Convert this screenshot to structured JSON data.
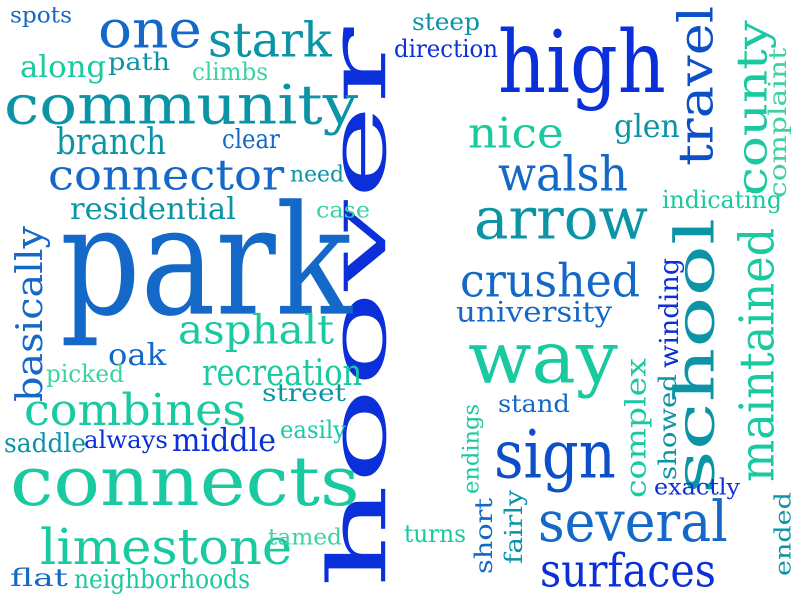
{
  "palette": {
    "royal_blue": "#0b2fd8",
    "medium_blue": "#1468c8",
    "teal": "#0a94a6",
    "aqua_green": "#19c9a0",
    "seafoam": "#3bd3a0"
  },
  "words": [
    {
      "text": "hoover",
      "color": "#0b2fd8",
      "vertical": true
    },
    {
      "text": "park",
      "color": "#1468c8",
      "vertical": false
    },
    {
      "text": "connects",
      "color": "#19c9a0",
      "vertical": false
    },
    {
      "text": "community",
      "color": "#0a94a6",
      "vertical": false
    },
    {
      "text": "high",
      "color": "#0b2fd8",
      "vertical": false
    },
    {
      "text": "school",
      "color": "#0a94a6",
      "vertical": true
    },
    {
      "text": "way",
      "color": "#19c9a0",
      "vertical": false
    },
    {
      "text": "several",
      "color": "#1468c8",
      "vertical": false
    },
    {
      "text": "travel",
      "color": "#0b50c8",
      "vertical": true
    },
    {
      "text": "sign",
      "color": "#0b50c8",
      "vertical": false
    },
    {
      "text": "arrow",
      "color": "#0a94a6",
      "vertical": false
    },
    {
      "text": "one",
      "color": "#1468c8",
      "vertical": false
    },
    {
      "text": "maintained",
      "color": "#19c9a0",
      "vertical": true
    },
    {
      "text": "county",
      "color": "#19c9a0",
      "vertical": true
    },
    {
      "text": "limestone",
      "color": "#19c9a0",
      "vertical": false
    },
    {
      "text": "connector",
      "color": "#1468c8",
      "vertical": false
    },
    {
      "text": "surfaces",
      "color": "#0b2fd8",
      "vertical": false
    },
    {
      "text": "combines",
      "color": "#19c9a0",
      "vertical": false
    },
    {
      "text": "basically",
      "color": "#1468c8",
      "vertical": true
    },
    {
      "text": "stark",
      "color": "#0a94a6",
      "vertical": false
    },
    {
      "text": "walsh",
      "color": "#1468c8",
      "vertical": false
    },
    {
      "text": "nice",
      "color": "#19c9a0",
      "vertical": false
    },
    {
      "text": "crushed",
      "color": "#1468c8",
      "vertical": false
    },
    {
      "text": "asphalt",
      "color": "#19c9a0",
      "vertical": false
    },
    {
      "text": "recreation",
      "color": "#19c9a0",
      "vertical": false
    },
    {
      "text": "residential",
      "color": "#0a94a6",
      "vertical": false
    },
    {
      "text": "branch",
      "color": "#0a94a6",
      "vertical": false
    },
    {
      "text": "middle",
      "color": "#0b2fd8",
      "vertical": false
    },
    {
      "text": "university",
      "color": "#1468c8",
      "vertical": false
    },
    {
      "text": "complex",
      "color": "#19c9a0",
      "vertical": true
    },
    {
      "text": "winding",
      "color": "#0b2fd8",
      "vertical": true
    },
    {
      "text": "glen",
      "color": "#0a94a6",
      "vertical": false
    },
    {
      "text": "direction",
      "color": "#0b2fd8",
      "vertical": false
    },
    {
      "text": "oak",
      "color": "#1468c8",
      "vertical": false
    },
    {
      "text": "along",
      "color": "#19c9a0",
      "vertical": false
    },
    {
      "text": "path",
      "color": "#0a94a6",
      "vertical": false
    },
    {
      "text": "climbs",
      "color": "#3bd3a0",
      "vertical": false
    },
    {
      "text": "steep",
      "color": "#0a94a6",
      "vertical": false
    },
    {
      "text": "spots",
      "color": "#1468c8",
      "vertical": false
    },
    {
      "text": "clear",
      "color": "#1468c8",
      "vertical": false
    },
    {
      "text": "need",
      "color": "#0a94a6",
      "vertical": false
    },
    {
      "text": "case",
      "color": "#3bd3a0",
      "vertical": false
    },
    {
      "text": "indicating",
      "color": "#19c9a0",
      "vertical": false
    },
    {
      "text": "complaint",
      "color": "#3bd3a0",
      "vertical": true
    },
    {
      "text": "picked",
      "color": "#3bd3a0",
      "vertical": false
    },
    {
      "text": "street",
      "color": "#0a94a6",
      "vertical": false
    },
    {
      "text": "stand",
      "color": "#1468c8",
      "vertical": false
    },
    {
      "text": "saddle",
      "color": "#0a94a6",
      "vertical": false
    },
    {
      "text": "always",
      "color": "#0b2fd8",
      "vertical": false
    },
    {
      "text": "easily",
      "color": "#19c9a0",
      "vertical": false
    },
    {
      "text": "endings",
      "color": "#19c9a0",
      "vertical": true
    },
    {
      "text": "showed",
      "color": "#0a94a6",
      "vertical": true
    },
    {
      "text": "exactly",
      "color": "#0b2fd8",
      "vertical": false
    },
    {
      "text": "fairly",
      "color": "#0a94a6",
      "vertical": true
    },
    {
      "text": "short",
      "color": "#1468c8",
      "vertical": true
    },
    {
      "text": "turns",
      "color": "#19c9a0",
      "vertical": false
    },
    {
      "text": "tamed",
      "color": "#3bd3a0",
      "vertical": false
    },
    {
      "text": "flat",
      "color": "#1468c8",
      "vertical": false
    },
    {
      "text": "neighborhoods",
      "color": "#19c9a0",
      "vertical": false
    },
    {
      "text": "ended",
      "color": "#0a94a6",
      "vertical": true
    }
  ]
}
